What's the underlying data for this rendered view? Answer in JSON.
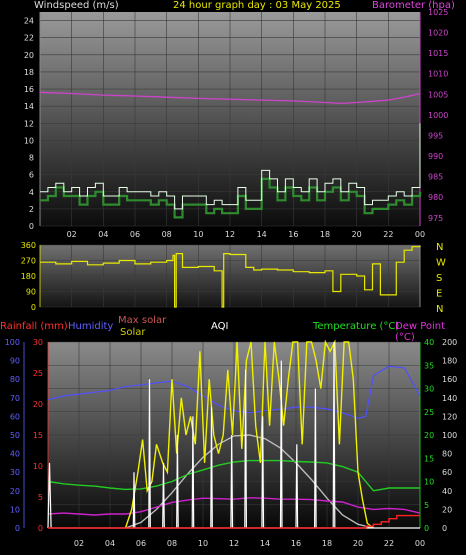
{
  "header": {
    "wind_label": "Windspeed (m/s)",
    "title": "24 hour graph day : 03 May 2025",
    "baro_label": "Barometer (hpa)"
  },
  "header2": {
    "rain_label": "Rainfall (mm)",
    "humidity_label": "Humidity",
    "maxsolar_label": "Max solar",
    "solar_label": "Solar",
    "aqi_label": "AQI",
    "temp_label": "Temperature (°C)",
    "dew_label": "Dew Point (°C)"
  },
  "colors": {
    "wind": "#2e8b2e",
    "gust": "#e8ffe8",
    "baro": "#cc44cc",
    "direction": "#e8e800",
    "humidity": "#5050ff",
    "temperature": "#22cc22",
    "dewpoint": "#cc22cc",
    "solar": "#f0f000",
    "maxsolar": "#bbbbbb",
    "uv": "#ffffff",
    "rain": "#ff2020",
    "rainrate": "#ff6060"
  },
  "chart_data": [
    {
      "type": "line",
      "panel": "wind_barometer",
      "x_tick_labels": [
        "02",
        "04",
        "06",
        "08",
        "10",
        "12",
        "14",
        "16",
        "18",
        "20",
        "22",
        "00"
      ],
      "xlim": [
        0,
        24
      ],
      "ylim": [
        0,
        25
      ],
      "y_ticks": [
        0,
        2,
        4,
        6,
        8,
        10,
        12,
        14,
        16,
        18,
        20,
        22,
        24
      ],
      "y2lim": [
        973,
        1025
      ],
      "y2_ticks": [
        975,
        980,
        985,
        990,
        995,
        1000,
        1005,
        1010,
        1015,
        1020,
        1025
      ],
      "grid": true,
      "series": [
        {
          "name": "Windspeed (m/s)",
          "axis": "left",
          "x": [
            0,
            0.5,
            1,
            1.5,
            2,
            2.5,
            3,
            3.5,
            4,
            4.5,
            5,
            5.5,
            6,
            6.5,
            7,
            7.5,
            8,
            8.5,
            9,
            9.5,
            10,
            10.5,
            11,
            11.5,
            12,
            12.5,
            13,
            13.5,
            14,
            14.5,
            15,
            15.5,
            16,
            16.5,
            17,
            17.5,
            18,
            18.5,
            19,
            19.5,
            20,
            20.5,
            21,
            21.5,
            22,
            22.5,
            23,
            23.5,
            24
          ],
          "y": [
            3,
            3.5,
            4.5,
            3.5,
            3.5,
            2.5,
            3.5,
            4,
            2.5,
            2.5,
            3.5,
            3,
            3,
            3,
            2.5,
            3,
            2.5,
            1,
            2.5,
            2.5,
            2.5,
            1.5,
            2,
            1.5,
            1.5,
            3.5,
            2,
            2,
            5.5,
            4.5,
            3,
            4.5,
            3.5,
            3,
            4.5,
            3,
            4,
            4.5,
            3,
            4,
            3.5,
            1.5,
            2,
            2,
            2.5,
            3,
            2.5,
            3.5,
            4
          ]
        },
        {
          "name": "Gust (m/s)",
          "axis": "left",
          "x": [
            0,
            0.5,
            1,
            1.5,
            2,
            2.5,
            3,
            3.5,
            4,
            4.5,
            5,
            5.5,
            6,
            6.5,
            7,
            7.5,
            8,
            8.5,
            9,
            9.5,
            10,
            10.5,
            11,
            11.5,
            12,
            12.5,
            13,
            13.5,
            14,
            14.5,
            15,
            15.5,
            16,
            16.5,
            17,
            17.5,
            18,
            18.5,
            19,
            19.5,
            20,
            20.5,
            21,
            21.5,
            22,
            22.5,
            23,
            23.5,
            24
          ],
          "y": [
            4,
            4.5,
            5,
            4,
            4.5,
            3.5,
            4.5,
            5,
            3.5,
            3.5,
            4.5,
            4,
            4,
            4,
            3.5,
            4,
            3.5,
            2,
            3.5,
            3.5,
            3.5,
            2.5,
            3,
            2.5,
            2.5,
            4.5,
            3,
            3,
            6.5,
            5.5,
            4,
            5.5,
            4.5,
            4,
            5.5,
            4,
            5,
            5.5,
            4,
            5,
            4.5,
            2.5,
            3,
            3,
            3.5,
            4,
            3.5,
            4.5,
            12
          ]
        },
        {
          "name": "Barometer (hpa)",
          "axis": "right",
          "x": [
            0,
            2,
            4,
            6,
            8,
            10,
            12,
            14,
            16,
            18,
            19,
            20,
            21,
            22,
            23,
            24
          ],
          "y": [
            1005.5,
            1005.2,
            1004.8,
            1004.6,
            1004.3,
            1004.0,
            1003.8,
            1003.6,
            1003.4,
            1003.0,
            1002.8,
            1003.0,
            1003.3,
            1003.6,
            1004.3,
            1005.2
          ]
        }
      ]
    },
    {
      "type": "line",
      "panel": "wind_direction",
      "x_tick_labels": [
        "02",
        "04",
        "06",
        "08",
        "10",
        "12",
        "14",
        "16",
        "18",
        "20",
        "22",
        "00"
      ],
      "xlim": [
        0,
        24
      ],
      "ylim": [
        0,
        360
      ],
      "y_ticks": [
        0,
        90,
        180,
        270,
        360
      ],
      "compass_labels": [
        "N",
        "W",
        "S",
        "E",
        "N"
      ],
      "grid": true,
      "series": [
        {
          "name": "Wind direction (degrees)",
          "x": [
            0,
            1,
            2,
            3,
            4,
            5,
            6,
            7,
            8,
            8.4,
            8.5,
            8.6,
            9,
            10,
            11,
            11.5,
            11.6,
            12,
            13,
            13.5,
            14,
            15,
            16,
            17,
            18,
            18.5,
            19,
            20,
            20.5,
            21,
            21.5,
            22,
            22.5,
            23,
            23.5,
            24
          ],
          "y": [
            260,
            250,
            265,
            245,
            255,
            270,
            250,
            260,
            270,
            300,
            0,
            310,
            230,
            235,
            210,
            0,
            310,
            305,
            230,
            215,
            220,
            215,
            205,
            200,
            210,
            90,
            190,
            180,
            100,
            250,
            70,
            70,
            260,
            330,
            350,
            355
          ]
        }
      ]
    },
    {
      "type": "line",
      "panel": "rain_humidity_solar_temperature",
      "x_tick_labels": [
        "02",
        "04",
        "06",
        "08",
        "10",
        "12",
        "14",
        "16",
        "18",
        "20",
        "22",
        "00"
      ],
      "xlim": [
        0,
        24
      ],
      "left_axis_rainfall": {
        "ylim": [
          0,
          30
        ],
        "ticks": [
          0,
          5,
          10,
          15,
          20,
          25,
          30
        ]
      },
      "left_axis_humidity": {
        "ylim": [
          0,
          100
        ],
        "ticks": [
          0,
          10,
          20,
          30,
          40,
          50,
          60,
          70,
          80,
          90,
          100
        ]
      },
      "right_axis_temperature": {
        "ylim": [
          0,
          40
        ],
        "ticks": [
          0,
          5,
          10,
          15,
          20,
          25,
          30,
          35,
          40
        ]
      },
      "right_axis_solar": {
        "ylim": [
          0,
          200
        ],
        "ticks": [
          0,
          20,
          40,
          60,
          80,
          100,
          120,
          140,
          160,
          180,
          200
        ]
      },
      "grid": true,
      "series": [
        {
          "name": "Humidity",
          "axis": "humidity",
          "x": [
            0,
            1,
            2,
            3,
            4,
            5,
            6,
            7,
            8,
            9,
            10,
            11,
            12,
            13,
            14,
            15,
            16,
            17,
            18,
            19,
            20,
            20.5,
            21,
            22,
            23,
            24
          ],
          "y": [
            69,
            71,
            72,
            73,
            74,
            76,
            77,
            78,
            79,
            76,
            71,
            66,
            63,
            62,
            63,
            64,
            65,
            65,
            64,
            62,
            59,
            60,
            82,
            87,
            86,
            71
          ]
        },
        {
          "name": "Temperature (°C)",
          "axis": "temperature",
          "x": [
            0,
            1,
            2,
            3,
            4,
            5,
            6,
            7,
            8,
            9,
            10,
            11,
            12,
            13,
            14,
            15,
            16,
            17,
            18,
            19,
            20,
            21,
            22,
            23,
            24
          ],
          "y": [
            10,
            9.5,
            9.2,
            9,
            8.6,
            8.3,
            8.4,
            9,
            10,
            11.5,
            12.5,
            13.5,
            14.2,
            14.5,
            14.5,
            14.5,
            14.3,
            14.2,
            14,
            13.2,
            12,
            8,
            8.6,
            8.6,
            8.6
          ]
        },
        {
          "name": "Dew Point (°C)",
          "axis": "temperature",
          "x": [
            0,
            1,
            2,
            3,
            4,
            5,
            6,
            7,
            8,
            9,
            10,
            11,
            12,
            13,
            14,
            15,
            16,
            17,
            18,
            19,
            20,
            21,
            22,
            23,
            24
          ],
          "y": [
            3,
            3.2,
            3,
            2.8,
            3,
            3,
            3.5,
            4.5,
            5.5,
            6,
            6.4,
            6.3,
            6.2,
            6.5,
            6.4,
            6.2,
            6.2,
            6.1,
            5.8,
            5.6,
            4.5,
            4,
            4.2,
            4,
            3.2
          ]
        },
        {
          "name": "Solar",
          "axis": "solar",
          "x": [
            5,
            5.4,
            5.8,
            6.1,
            6.4,
            6.7,
            7,
            7.4,
            7.7,
            8,
            8.3,
            8.6,
            8.9,
            9.2,
            9.5,
            9.8,
            10.1,
            10.4,
            10.7,
            11,
            11.3,
            11.6,
            11.9,
            12.2,
            12.5,
            12.8,
            13.1,
            13.4,
            13.7,
            14,
            14.3,
            14.6,
            14.9,
            15.2,
            15.5,
            15.8,
            16.1,
            16.4,
            16.7,
            17,
            17.3,
            17.6,
            17.9,
            18.2,
            18.5,
            18.8,
            19.1,
            19.4,
            19.7,
            20,
            20.3,
            20.6,
            21
          ],
          "y": [
            0,
            20,
            60,
            95,
            40,
            50,
            90,
            70,
            60,
            160,
            80,
            140,
            100,
            120,
            90,
            190,
            70,
            160,
            100,
            80,
            100,
            170,
            100,
            200,
            85,
            180,
            200,
            110,
            70,
            200,
            110,
            200,
            160,
            110,
            160,
            200,
            200,
            90,
            200,
            200,
            180,
            150,
            200,
            190,
            200,
            90,
            200,
            200,
            160,
            60,
            30,
            5,
            0
          ]
        },
        {
          "name": "Max solar",
          "axis": "solar",
          "x": [
            5,
            6,
            7,
            8,
            9,
            10,
            11,
            12,
            13,
            14,
            15,
            16,
            17,
            18,
            19,
            20,
            21
          ],
          "y": [
            0,
            6,
            20,
            38,
            58,
            76,
            90,
            99,
            100,
            96,
            86,
            70,
            52,
            32,
            14,
            4,
            0
          ]
        },
        {
          "name": "UV index",
          "axis": "solar",
          "x": [
            0,
            0.1,
            0.2,
            5.5,
            5.55,
            5.6,
            6.5,
            6.55,
            6.6,
            7.4,
            7.45,
            7.5,
            8.3,
            8.35,
            8.4,
            9.3,
            9.35,
            9.4,
            10.5,
            10.55,
            10.6,
            11.8,
            11.85,
            11.9,
            12.7,
            12.75,
            12.8,
            13.8,
            13.85,
            13.9,
            15,
            15.05,
            15.1,
            16,
            16.05,
            16.1,
            17.2,
            17.25,
            17.3,
            18.4,
            18.45,
            18.5,
            24
          ],
          "y": [
            0,
            70,
            0,
            0,
            60,
            0,
            0,
            160,
            0,
            0,
            70,
            0,
            0,
            100,
            0,
            0,
            120,
            0,
            0,
            130,
            0,
            0,
            100,
            0,
            0,
            170,
            0,
            0,
            120,
            0,
            0,
            180,
            0,
            0,
            90,
            0,
            0,
            150,
            0,
            0,
            200,
            0,
            0
          ]
        },
        {
          "name": "Rainfall (mm)",
          "axis": "rainfall",
          "x": [
            0,
            20,
            20.5,
            21,
            21.5,
            22,
            22.5,
            23,
            23.5,
            24
          ],
          "y": [
            0,
            0,
            0.3,
            0.6,
            1.0,
            1.5,
            2.0,
            2.0,
            2.0,
            2.0
          ]
        }
      ]
    }
  ]
}
